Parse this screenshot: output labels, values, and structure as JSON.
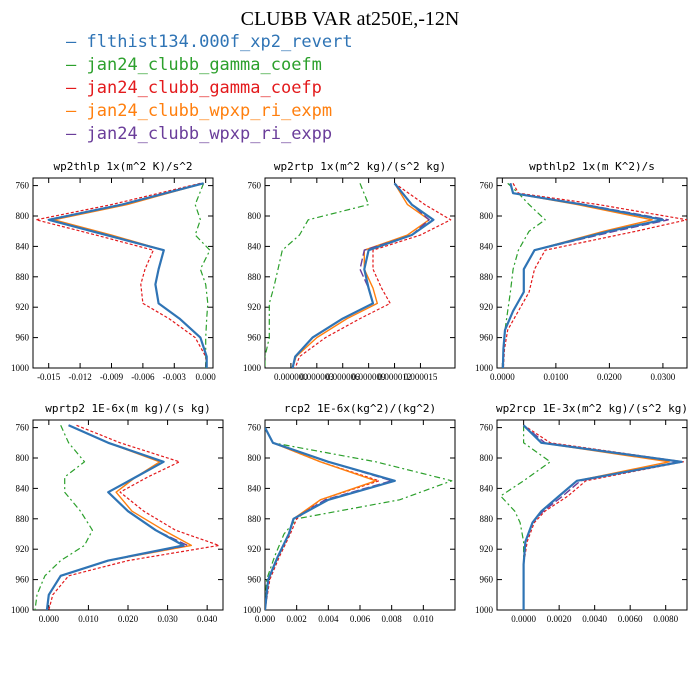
{
  "title": "CLUBB VAR at250E,-12N",
  "colors": {
    "flthist134.000f_xp2_revert": "#2f74b5",
    "jan24_clubb_gamma_coefm": "#2ca02c",
    "jan24_clubb_gamma_coefp": "#e31a1c",
    "jan24_clubb_wpxp_ri_expm": "#ff7f0e",
    "jan24_clubb_wpxp_ri_expp": "#6a3d9a"
  },
  "legend": [
    {
      "label": "flthist134.000f_xp2_revert",
      "color": "#2f74b5"
    },
    {
      "label": "jan24_clubb_gamma_coefm",
      "color": "#2ca02c"
    },
    {
      "label": "jan24_clubb_gamma_coefp",
      "color": "#e31a1c"
    },
    {
      "label": "jan24_clubb_wpxp_ri_expm",
      "color": "#ff7f0e"
    },
    {
      "label": "jan24_clubb_wpxp_ri_expp",
      "color": "#6a3d9a"
    }
  ],
  "chart_data": [
    {
      "type": "line",
      "title": "wp2thlp   1x(m^2 K)/s^2",
      "ylim": [
        1000,
        750
      ],
      "xlim": [
        -0.0165,
        0.0007
      ],
      "yticks": [
        760,
        800,
        840,
        880,
        920,
        960,
        1000
      ],
      "xticks": [
        -0.015,
        -0.012,
        -0.009,
        -0.006,
        -0.003,
        0.0
      ],
      "xticklabels": [
        "-0.015",
        "-0.012",
        "-0.009",
        "-0.006",
        "-0.003",
        "0.000"
      ],
      "y": [
        757,
        785,
        805,
        825,
        845,
        870,
        890,
        915,
        935,
        960,
        985,
        1000
      ],
      "series": [
        {
          "name": "flthist134.000f_xp2_revert",
          "values": [
            -0.0002,
            -0.008,
            -0.015,
            -0.0095,
            -0.004,
            -0.0045,
            -0.0048,
            -0.0045,
            -0.0025,
            -0.0005,
            0.0001,
            0.0001
          ]
        },
        {
          "name": "jan24_clubb_gamma_coefm",
          "values": [
            -0.0002,
            -0.001,
            -0.0005,
            -0.001,
            0.0004,
            -0.0005,
            0.0,
            0.0002,
            0.0001,
            0.0,
            0.0,
            0.0
          ]
        },
        {
          "name": "jan24_clubb_gamma_coefp",
          "values": [
            -0.0005,
            -0.009,
            -0.0162,
            -0.0105,
            -0.005,
            -0.0058,
            -0.0062,
            -0.006,
            -0.0035,
            -0.001,
            0.0,
            0.0001
          ]
        },
        {
          "name": "jan24_clubb_wpxp_ri_expm",
          "values": [
            -0.0002,
            -0.0075,
            -0.0145,
            -0.009,
            -0.004,
            -0.0045,
            -0.0048,
            -0.0045,
            -0.0025,
            -0.0005,
            0.0001,
            0.0001
          ]
        },
        {
          "name": "jan24_clubb_wpxp_ri_expp",
          "values": [
            -0.0002,
            -0.008,
            -0.015,
            -0.0095,
            -0.004,
            -0.0045,
            -0.0048,
            -0.0045,
            -0.0025,
            -0.0005,
            0.0001,
            0.0001
          ]
        }
      ]
    },
    {
      "type": "line",
      "title": "wp2rtp   1x(m^2 kg)/(s^2 kg)",
      "ylim": [
        1000,
        750
      ],
      "xlim": [
        -3e-06,
        1.9e-05
      ],
      "yticks": [
        760,
        800,
        840,
        880,
        920,
        960,
        1000
      ],
      "xticks": [
        0.0,
        3e-06,
        6e-06,
        9e-06,
        1.2e-05,
        1.5e-05
      ],
      "xticklabels": [
        "0.000000",
        "0.000003",
        "0.000006",
        "0.000009",
        "0.000012",
        "0.000015"
      ],
      "y": [
        757,
        785,
        805,
        825,
        845,
        870,
        895,
        915,
        935,
        960,
        985,
        1000
      ],
      "series": [
        {
          "name": "flthist134.000f_xp2_revert",
          "values": [
            1.2e-05,
            1.4e-05,
            1.65e-05,
            1.4e-05,
            9e-06,
            8.5e-06,
            9e-06,
            9.5e-06,
            6e-06,
            2.5e-06,
            5e-07,
            2e-07
          ]
        },
        {
          "name": "jan24_clubb_gamma_coefm",
          "values": [
            8e-06,
            9e-06,
            2e-06,
            1e-06,
            -1e-06,
            -1.5e-06,
            -2e-06,
            -2.5e-06,
            -2.5e-06,
            -2.5e-06,
            -3e-06,
            -3e-06
          ]
        },
        {
          "name": "jan24_clubb_gamma_coefp",
          "values": [
            1.2e-05,
            1.55e-05,
            1.85e-05,
            1.5e-05,
            9.5e-06,
            9.5e-06,
            1.05e-05,
            1.15e-05,
            8e-06,
            4e-06,
            1e-06,
            5e-07
          ]
        },
        {
          "name": "jan24_clubb_wpxp_ri_expm",
          "values": [
            1.2e-05,
            1.35e-05,
            1.6e-05,
            1.35e-05,
            8.5e-06,
            8.5e-06,
            9.5e-06,
            1e-05,
            6.5e-06,
            3e-06,
            6e-07,
            2e-07
          ]
        },
        {
          "name": "jan24_clubb_wpxp_ri_expp",
          "values": [
            1.2e-05,
            1.4e-05,
            1.6e-05,
            1.4e-05,
            8.5e-06,
            8e-06,
            9e-06,
            9.5e-06,
            6e-06,
            2.5e-06,
            5e-07,
            2e-07
          ]
        }
      ]
    },
    {
      "type": "line",
      "title": "wpthlp2   1x(m K^2)/s",
      "ylim": [
        1000,
        750
      ],
      "xlim": [
        -0.001,
        0.0345
      ],
      "yticks": [
        760,
        800,
        840,
        880,
        920,
        960,
        1000
      ],
      "xticks": [
        0.0,
        0.01,
        0.02,
        0.03
      ],
      "xticklabels": [
        "0.0000",
        "0.0100",
        "0.0200",
        "0.0300"
      ],
      "y": [
        757,
        770,
        785,
        805,
        820,
        845,
        870,
        900,
        925,
        950,
        975,
        1000
      ],
      "series": [
        {
          "name": "flthist134.000f_xp2_revert",
          "values": [
            0.0015,
            0.002,
            0.015,
            0.03,
            0.02,
            0.006,
            0.004,
            0.004,
            0.002,
            0.0005,
            0.0002,
            0.0001
          ]
        },
        {
          "name": "jan24_clubb_gamma_coefm",
          "values": [
            0.001,
            0.003,
            0.005,
            0.008,
            0.005,
            0.003,
            0.002,
            0.0015,
            0.001,
            0.0005,
            0.0002,
            0.0001
          ]
        },
        {
          "name": "jan24_clubb_gamma_coefp",
          "values": [
            0.002,
            0.003,
            0.018,
            0.0345,
            0.025,
            0.008,
            0.006,
            0.005,
            0.003,
            0.001,
            0.0004,
            0.0002
          ]
        },
        {
          "name": "jan24_clubb_wpxp_ri_expm",
          "values": [
            0.0015,
            0.002,
            0.014,
            0.028,
            0.019,
            0.006,
            0.004,
            0.004,
            0.002,
            0.0005,
            0.0002,
            0.0001
          ]
        },
        {
          "name": "jan24_clubb_wpxp_ri_expp",
          "values": [
            0.0015,
            0.002,
            0.0155,
            0.031,
            0.021,
            0.006,
            0.004,
            0.004,
            0.002,
            0.0005,
            0.0002,
            0.0001
          ]
        }
      ]
    },
    {
      "type": "line",
      "title": "wprtp2   1E-6x(m kg)/(s kg)",
      "ylim": [
        1000,
        750
      ],
      "xlim": [
        -0.004,
        0.044
      ],
      "yticks": [
        760,
        800,
        840,
        880,
        920,
        960,
        1000
      ],
      "xticks": [
        0.0,
        0.01,
        0.02,
        0.03,
        0.04
      ],
      "xticklabels": [
        "0.000",
        "0.010",
        "0.020",
        "0.030",
        "0.040"
      ],
      "y": [
        757,
        780,
        805,
        825,
        845,
        870,
        895,
        915,
        935,
        955,
        980,
        1000
      ],
      "series": [
        {
          "name": "flthist134.000f_xp2_revert",
          "values": [
            0.005,
            0.015,
            0.029,
            0.022,
            0.015,
            0.02,
            0.027,
            0.034,
            0.015,
            0.003,
            0.0,
            -0.0005
          ]
        },
        {
          "name": "jan24_clubb_gamma_coefm",
          "values": [
            0.003,
            0.005,
            0.009,
            0.004,
            0.004,
            0.008,
            0.011,
            0.009,
            0.003,
            -0.001,
            -0.003,
            -0.0035
          ]
        },
        {
          "name": "jan24_clubb_gamma_coefp",
          "values": [
            0.007,
            0.018,
            0.033,
            0.025,
            0.018,
            0.024,
            0.032,
            0.043,
            0.02,
            0.005,
            0.001,
            0.0
          ]
        },
        {
          "name": "jan24_clubb_wpxp_ri_expm",
          "values": [
            0.005,
            0.015,
            0.028,
            0.022,
            0.017,
            0.021,
            0.029,
            0.036,
            0.015,
            0.003,
            0.0,
            -0.0005
          ]
        },
        {
          "name": "jan24_clubb_wpxp_ri_expp",
          "values": [
            0.005,
            0.015,
            0.029,
            0.022,
            0.015,
            0.02,
            0.027,
            0.035,
            0.015,
            0.003,
            0.0,
            -0.0005
          ]
        }
      ]
    },
    {
      "type": "line",
      "title": "rcp2   1E-6x(kg^2)/(kg^2)",
      "ylim": [
        1000,
        750
      ],
      "xlim": [
        0.0,
        0.012
      ],
      "yticks": [
        760,
        800,
        840,
        880,
        920,
        960,
        1000
      ],
      "xticks": [
        0.0,
        0.002,
        0.004,
        0.006,
        0.008,
        0.01
      ],
      "xticklabels": [
        "0.000",
        "0.002",
        "0.004",
        "0.006",
        "0.008",
        "0.010"
      ],
      "y": [
        760,
        780,
        805,
        830,
        855,
        880,
        900,
        930,
        960,
        1000
      ],
      "series": [
        {
          "name": "flthist134.000f_xp2_revert",
          "values": [
            0.0,
            0.0005,
            0.004,
            0.0082,
            0.004,
            0.0018,
            0.0015,
            0.0008,
            0.0002,
            0.0
          ]
        },
        {
          "name": "jan24_clubb_gamma_coefm",
          "values": [
            0.0,
            0.0005,
            0.007,
            0.0118,
            0.0085,
            0.002,
            0.0012,
            0.0006,
            0.0001,
            0.0
          ]
        },
        {
          "name": "jan24_clubb_gamma_coefp",
          "values": [
            0.0,
            0.0005,
            0.0035,
            0.0072,
            0.0035,
            0.002,
            0.0016,
            0.0009,
            0.0003,
            0.0
          ]
        },
        {
          "name": "jan24_clubb_wpxp_ri_expm",
          "values": [
            0.0,
            0.0005,
            0.0035,
            0.007,
            0.0035,
            0.0018,
            0.0015,
            0.0008,
            0.0002,
            0.0
          ]
        },
        {
          "name": "jan24_clubb_wpxp_ri_expp",
          "values": [
            0.0,
            0.0005,
            0.004,
            0.008,
            0.0038,
            0.0018,
            0.0015,
            0.0008,
            0.0002,
            0.0
          ]
        }
      ]
    },
    {
      "type": "line",
      "title": "wp2rcp   1E-3x(m^2 kg)/(s^2 kg)",
      "ylim": [
        1000,
        750
      ],
      "xlim": [
        -0.0015,
        0.0092
      ],
      "yticks": [
        760,
        800,
        840,
        880,
        920,
        960,
        1000
      ],
      "xticks": [
        0.0,
        0.002,
        0.004,
        0.006,
        0.008
      ],
      "xticklabels": [
        "0.0000",
        "0.0020",
        "0.0040",
        "0.0060",
        "0.0080"
      ],
      "y": [
        757,
        780,
        805,
        830,
        850,
        870,
        885,
        910,
        940,
        970,
        1000
      ],
      "series": [
        {
          "name": "flthist134.000f_xp2_revert",
          "values": [
            0.0,
            0.001,
            0.0089,
            0.003,
            0.002,
            0.001,
            0.0005,
            0.0001,
            0.0,
            0.0,
            0.0
          ]
        },
        {
          "name": "jan24_clubb_gamma_coefm",
          "values": [
            0.0,
            0.0,
            0.0015,
            0.0,
            -0.0013,
            -0.0005,
            -0.0002,
            0.0,
            0.0,
            0.0,
            0.0
          ]
        },
        {
          "name": "jan24_clubb_gamma_coefp",
          "values": [
            0.0,
            0.0015,
            0.009,
            0.0035,
            0.0025,
            0.0012,
            0.0006,
            0.0002,
            0.0,
            0.0,
            0.0
          ]
        },
        {
          "name": "jan24_clubb_wpxp_ri_expm",
          "values": [
            0.0,
            0.001,
            0.0082,
            0.003,
            0.002,
            0.001,
            0.0005,
            0.0001,
            0.0,
            0.0,
            0.0
          ]
        },
        {
          "name": "jan24_clubb_wpxp_ri_expp",
          "values": [
            0.0,
            0.0012,
            0.0087,
            0.0032,
            0.0022,
            0.0011,
            0.0005,
            0.0001,
            0.0,
            0.0,
            0.0
          ]
        }
      ]
    }
  ]
}
